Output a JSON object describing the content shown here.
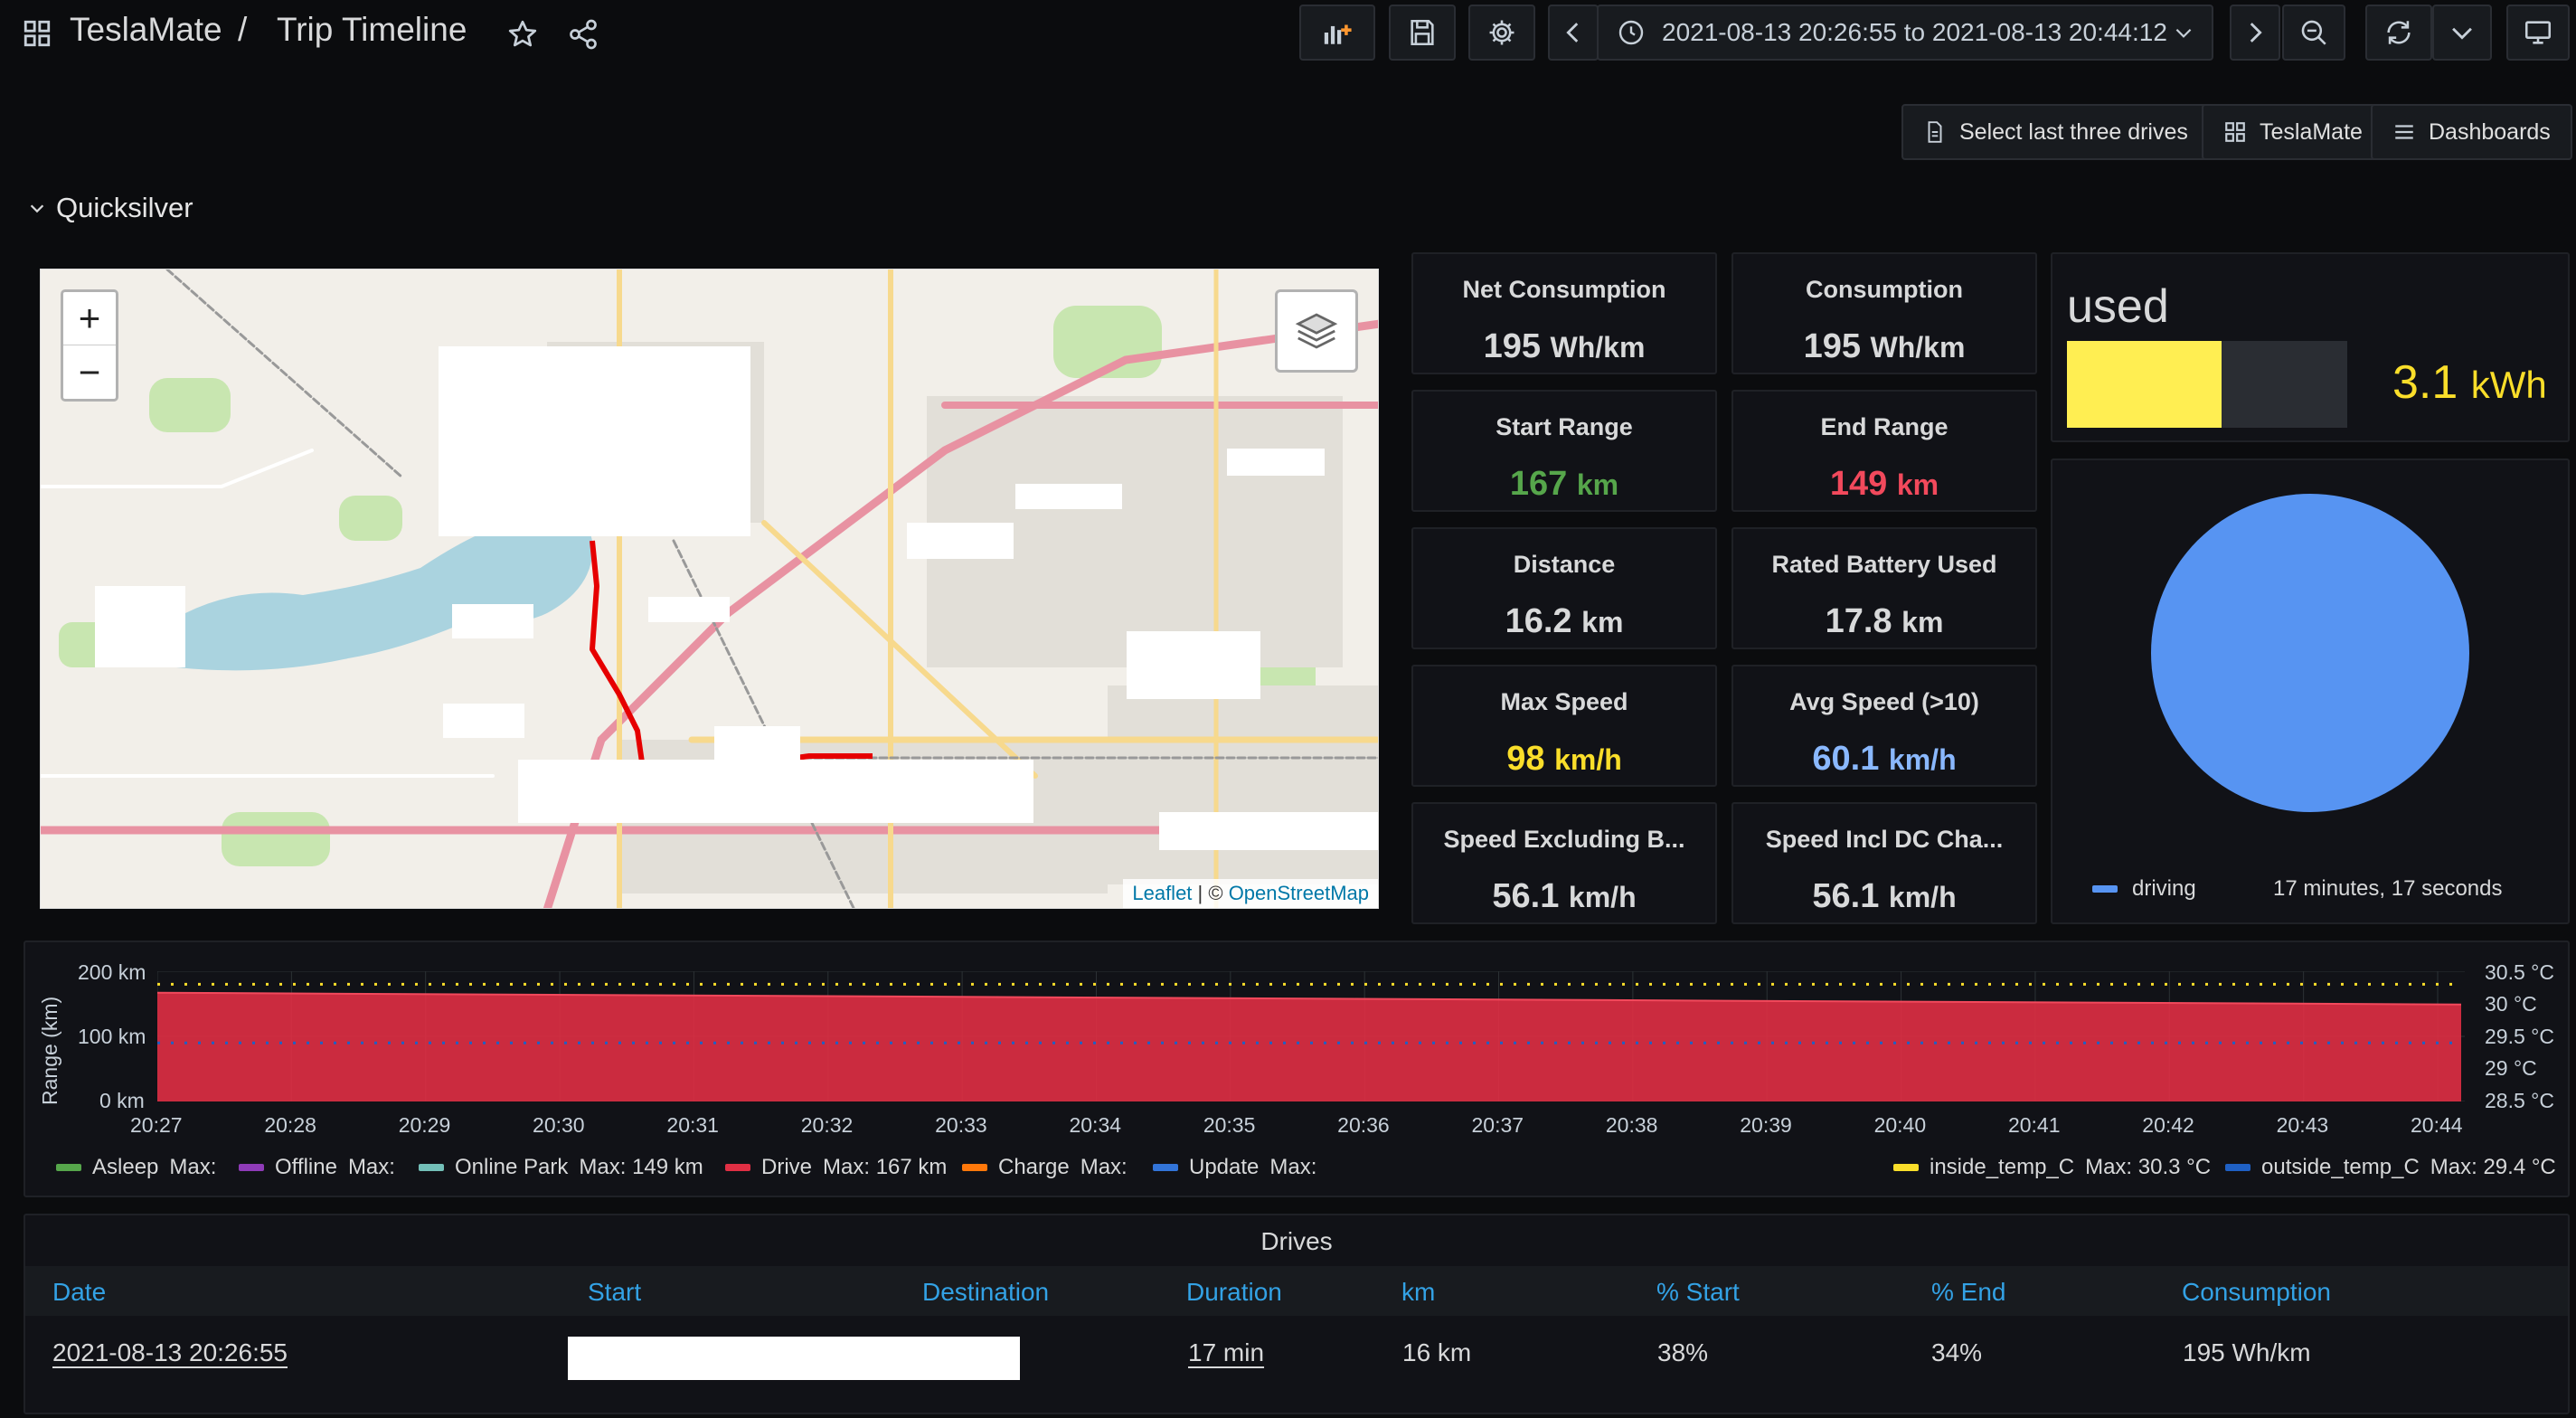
{
  "header": {
    "org": "TeslaMate",
    "separator": "/",
    "title": "Trip Timeline",
    "time_range": "2021-08-13 20:26:55 to 2021-08-13 20:44:12"
  },
  "links": {
    "select_last": "Select last three drives",
    "teslamate": "TeslaMate",
    "dashboards": "Dashboards"
  },
  "row": {
    "title": "Quicksilver"
  },
  "map": {
    "zoom_in": "+",
    "zoom_out": "−",
    "attribution_leaflet": "Leaflet",
    "attribution_sep": " | © ",
    "attribution_osm": "OpenStreetMap"
  },
  "stats": [
    {
      "title": "Net Consumption",
      "value": "195",
      "unit": "Wh/km",
      "color": "#d8d9da"
    },
    {
      "title": "Consumption",
      "value": "195",
      "unit": "Wh/km",
      "color": "#d8d9da"
    },
    {
      "title": "Start Range",
      "value": "167",
      "unit": "km",
      "color": "#56a64b"
    },
    {
      "title": "End Range",
      "value": "149",
      "unit": "km",
      "color": "#f2495c"
    },
    {
      "title": "Distance",
      "value": "16.2",
      "unit": "km",
      "color": "#d8d9da"
    },
    {
      "title": "Rated Battery Used",
      "value": "17.8",
      "unit": "km",
      "color": "#d8d9da"
    },
    {
      "title": "Max Speed",
      "value": "98",
      "unit": "km/h",
      "color": "#fade2a"
    },
    {
      "title": "Avg Speed (>10)",
      "value": "60.1",
      "unit": "km/h",
      "color": "#8ab8ff"
    },
    {
      "title": "Speed Excluding B...",
      "value": "56.1",
      "unit": "km/h",
      "color": "#d8d9da"
    },
    {
      "title": "Speed Incl DC Cha...",
      "value": "56.1",
      "unit": "km/h",
      "color": "#d8d9da"
    }
  ],
  "energy": {
    "label": "used",
    "value": "3.1",
    "unit": "kWh",
    "fill": 0.55,
    "color": "#ffee52"
  },
  "pie": {
    "legend_label": "driving",
    "legend_value": "17 minutes, 17 seconds",
    "color": "#5794f2"
  },
  "chart_data": {
    "type": "area",
    "ylabel": "Range (km)",
    "y_ticks": [
      "200 km",
      "100 km",
      "0 km"
    ],
    "y2_ticks": [
      "30.5 °C",
      "30 °C",
      "29.5 °C",
      "29 °C",
      "28.5 °C"
    ],
    "ylim": [
      0,
      200
    ],
    "y2lim": [
      28.5,
      30.5
    ],
    "x": [
      "20:27",
      "20:28",
      "20:29",
      "20:30",
      "20:31",
      "20:32",
      "20:33",
      "20:34",
      "20:35",
      "20:36",
      "20:37",
      "20:38",
      "20:39",
      "20:40",
      "20:41",
      "20:42",
      "20:43",
      "20:44"
    ],
    "series": [
      {
        "name": "Drive",
        "start": 167,
        "end": 149,
        "color": "#e02f44"
      },
      {
        "name": "inside_temp_C",
        "value": 30.3,
        "color": "#fade2a"
      },
      {
        "name": "outside_temp_C",
        "value": 29.4,
        "color": "#1f60c4"
      }
    ],
    "legend": [
      {
        "name": "Asleep",
        "max": "Max:",
        "color": "#56a64b"
      },
      {
        "name": "Offline",
        "max": "Max:",
        "color": "#8f3bb8"
      },
      {
        "name": "Online Park",
        "max": "Max: 149 km",
        "color": "#73bfb8"
      },
      {
        "name": "Drive",
        "max": "Max: 167 km",
        "color": "#e02f44"
      },
      {
        "name": "Charge",
        "max": "Max:",
        "color": "#ff780a"
      },
      {
        "name": "Update",
        "max": "Max:",
        "color": "#3274d9"
      },
      {
        "name": "inside_temp_C",
        "max": "Max: 30.3 °C",
        "color": "#fade2a"
      },
      {
        "name": "outside_temp_C",
        "max": "Max: 29.4 °C",
        "color": "#1f60c4"
      }
    ]
  },
  "drives": {
    "title": "Drives",
    "columns": [
      "Date",
      "Start",
      "Destination",
      "Duration",
      "km",
      "% Start",
      "% End",
      "Consumption"
    ],
    "rows": [
      {
        "date": "2021-08-13 20:26:55",
        "start": "",
        "destination": "",
        "duration": "17 min",
        "km": "16 km",
        "pct_start": "38%",
        "pct_end": "34%",
        "consumption": "195 Wh/km"
      }
    ]
  }
}
